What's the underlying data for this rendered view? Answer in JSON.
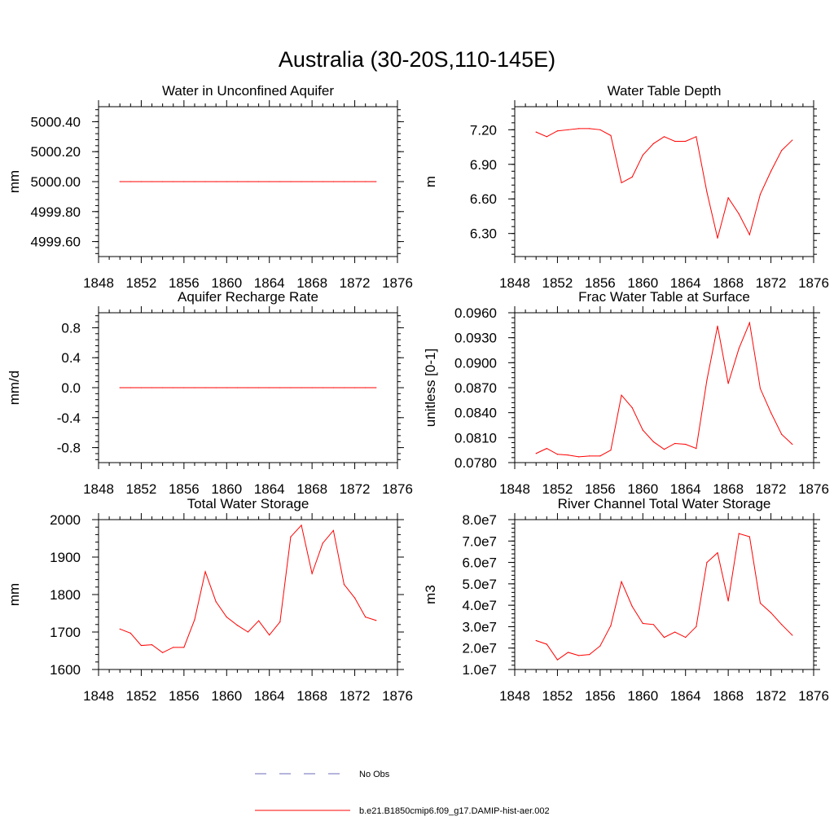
{
  "figure": {
    "title": "Australia (30-20S,110-145E)"
  },
  "legend": {
    "placement": "bottom-center",
    "entries": [
      {
        "label": "No Obs",
        "color": "#6b6bb8",
        "style": "dashed"
      },
      {
        "label": "b.e21.B1850cmip6.f09_g17.DAMIP-hist-aer.002",
        "color": "#ff0000",
        "style": "solid"
      }
    ]
  },
  "chart_data": [
    {
      "type": "line",
      "title": "Water in Unconfined Aquifer",
      "ylabel": "mm",
      "xlim": [
        1848,
        1876
      ],
      "xticks": [
        "1848",
        "1852",
        "1856",
        "1860",
        "1864",
        "1868",
        "1872",
        "1876"
      ],
      "ylim": [
        4999.5,
        5000.5
      ],
      "yticks": [
        "4999.60",
        "4999.80",
        "5000.00",
        "5000.20",
        "5000.40"
      ],
      "yminor_step": 0.04,
      "x": [
        1850,
        1851,
        1852,
        1853,
        1854,
        1855,
        1856,
        1857,
        1858,
        1859,
        1860,
        1861,
        1862,
        1863,
        1864,
        1865,
        1866,
        1867,
        1868,
        1869,
        1870,
        1871,
        1872,
        1873,
        1874
      ],
      "series": [
        {
          "color": "#ff0000",
          "values": [
            5000,
            5000,
            5000,
            5000,
            5000,
            5000,
            5000,
            5000,
            5000,
            5000,
            5000,
            5000,
            5000,
            5000,
            5000,
            5000,
            5000,
            5000,
            5000,
            5000,
            5000,
            5000,
            5000,
            5000,
            5000
          ]
        }
      ]
    },
    {
      "type": "line",
      "title": "Water Table Depth",
      "ylabel": "m",
      "xlim": [
        1848,
        1876
      ],
      "xticks": [
        "1848",
        "1852",
        "1856",
        "1860",
        "1864",
        "1868",
        "1872",
        "1876"
      ],
      "ylim": [
        6.1,
        7.4
      ],
      "yticks": [
        "6.30",
        "6.60",
        "6.90",
        "7.20"
      ],
      "yminor_step": 0.06,
      "x": [
        1850,
        1851,
        1852,
        1853,
        1854,
        1855,
        1856,
        1857,
        1858,
        1859,
        1860,
        1861,
        1862,
        1863,
        1864,
        1865,
        1866,
        1867,
        1868,
        1869,
        1870,
        1871,
        1872,
        1873,
        1874
      ],
      "series": [
        {
          "color": "#ff0000",
          "values": [
            7.18,
            7.14,
            7.19,
            7.2,
            7.21,
            7.21,
            7.2,
            7.15,
            6.74,
            6.79,
            6.98,
            7.08,
            7.14,
            7.1,
            7.1,
            7.14,
            6.66,
            6.26,
            6.61,
            6.47,
            6.29,
            6.64,
            6.84,
            7.02,
            7.11
          ]
        }
      ]
    },
    {
      "type": "line",
      "title": "Aquifer Recharge Rate",
      "ylabel": "mm/d",
      "xlim": [
        1848,
        1876
      ],
      "xticks": [
        "1848",
        "1852",
        "1856",
        "1860",
        "1864",
        "1868",
        "1872",
        "1876"
      ],
      "ylim": [
        -1.0,
        1.0
      ],
      "yticks": [
        "-0.8",
        "-0.4",
        "0.0",
        "0.4",
        "0.8"
      ],
      "yminor_step": 0.08,
      "x": [
        1850,
        1851,
        1852,
        1853,
        1854,
        1855,
        1856,
        1857,
        1858,
        1859,
        1860,
        1861,
        1862,
        1863,
        1864,
        1865,
        1866,
        1867,
        1868,
        1869,
        1870,
        1871,
        1872,
        1873,
        1874
      ],
      "series": [
        {
          "color": "#ff0000",
          "values": [
            0,
            0,
            0,
            0,
            0,
            0,
            0,
            0,
            0,
            0,
            0,
            0,
            0,
            0,
            0,
            0,
            0,
            0,
            0,
            0,
            0,
            0,
            0,
            0,
            0
          ]
        }
      ]
    },
    {
      "type": "line",
      "title": "Frac Water Table at Surface",
      "ylabel": "unitless [0-1]",
      "xlim": [
        1848,
        1876
      ],
      "xticks": [
        "1848",
        "1852",
        "1856",
        "1860",
        "1864",
        "1868",
        "1872",
        "1876"
      ],
      "ylim": [
        0.078,
        0.096
      ],
      "yticks": [
        "0.0780",
        "0.0810",
        "0.0840",
        "0.0870",
        "0.0900",
        "0.0930",
        "0.0960"
      ],
      "yminor_step": 0.0006,
      "x": [
        1850,
        1851,
        1852,
        1853,
        1854,
        1855,
        1856,
        1857,
        1858,
        1859,
        1860,
        1861,
        1862,
        1863,
        1864,
        1865,
        1866,
        1867,
        1868,
        1869,
        1870,
        1871,
        1872,
        1873,
        1874
      ],
      "series": [
        {
          "color": "#ff0000",
          "values": [
            0.0791,
            0.0797,
            0.079,
            0.0789,
            0.0787,
            0.0788,
            0.0788,
            0.0795,
            0.0861,
            0.0846,
            0.0819,
            0.0805,
            0.0796,
            0.0803,
            0.0802,
            0.0797,
            0.0879,
            0.0944,
            0.0875,
            0.0917,
            0.0948,
            0.0869,
            0.084,
            0.0814,
            0.0802
          ]
        }
      ]
    },
    {
      "type": "line",
      "title": "Total Water Storage",
      "ylabel": "mm",
      "xlim": [
        1848,
        1876
      ],
      "xticks": [
        "1848",
        "1852",
        "1856",
        "1860",
        "1864",
        "1868",
        "1872",
        "1876"
      ],
      "ylim": [
        1600,
        2000
      ],
      "yticks": [
        "1600",
        "1700",
        "1800",
        "1900",
        "2000"
      ],
      "yminor_step": 20,
      "x": [
        1850,
        1851,
        1852,
        1853,
        1854,
        1855,
        1856,
        1857,
        1858,
        1859,
        1860,
        1861,
        1862,
        1863,
        1864,
        1865,
        1866,
        1867,
        1868,
        1869,
        1870,
        1871,
        1872,
        1873,
        1874
      ],
      "series": [
        {
          "color": "#ff0000",
          "values": [
            1708,
            1697,
            1664,
            1666,
            1645,
            1659,
            1659,
            1733,
            1861,
            1781,
            1740,
            1718,
            1700,
            1730,
            1692,
            1727,
            1954,
            1985,
            1856,
            1937,
            1971,
            1827,
            1791,
            1740,
            1731
          ]
        }
      ]
    },
    {
      "type": "line",
      "title": "River Channel Total Water Storage",
      "ylabel": "m3",
      "xlim": [
        1848,
        1876
      ],
      "xticks": [
        "1848",
        "1852",
        "1856",
        "1860",
        "1864",
        "1868",
        "1872",
        "1876"
      ],
      "ylim": [
        10000000,
        80000000
      ],
      "yticks": [
        "1.0e7",
        "2.0e7",
        "3.0e7",
        "4.0e7",
        "5.0e7",
        "6.0e7",
        "7.0e7",
        "8.0e7"
      ],
      "yminor_step": 2000000,
      "x": [
        1850,
        1851,
        1852,
        1853,
        1854,
        1855,
        1856,
        1857,
        1858,
        1859,
        1860,
        1861,
        1862,
        1863,
        1864,
        1865,
        1866,
        1867,
        1868,
        1869,
        1870,
        1871,
        1872,
        1873,
        1874
      ],
      "series": [
        {
          "color": "#ff0000",
          "values": [
            23500000,
            21800000,
            14500000,
            18000000,
            16500000,
            17000000,
            21000000,
            30500000,
            51000000,
            39500000,
            31500000,
            31000000,
            25000000,
            27500000,
            25000000,
            30000000,
            60000000,
            64500000,
            42000000,
            73500000,
            72000000,
            41000000,
            36500000,
            31000000,
            26000000
          ]
        }
      ]
    }
  ]
}
